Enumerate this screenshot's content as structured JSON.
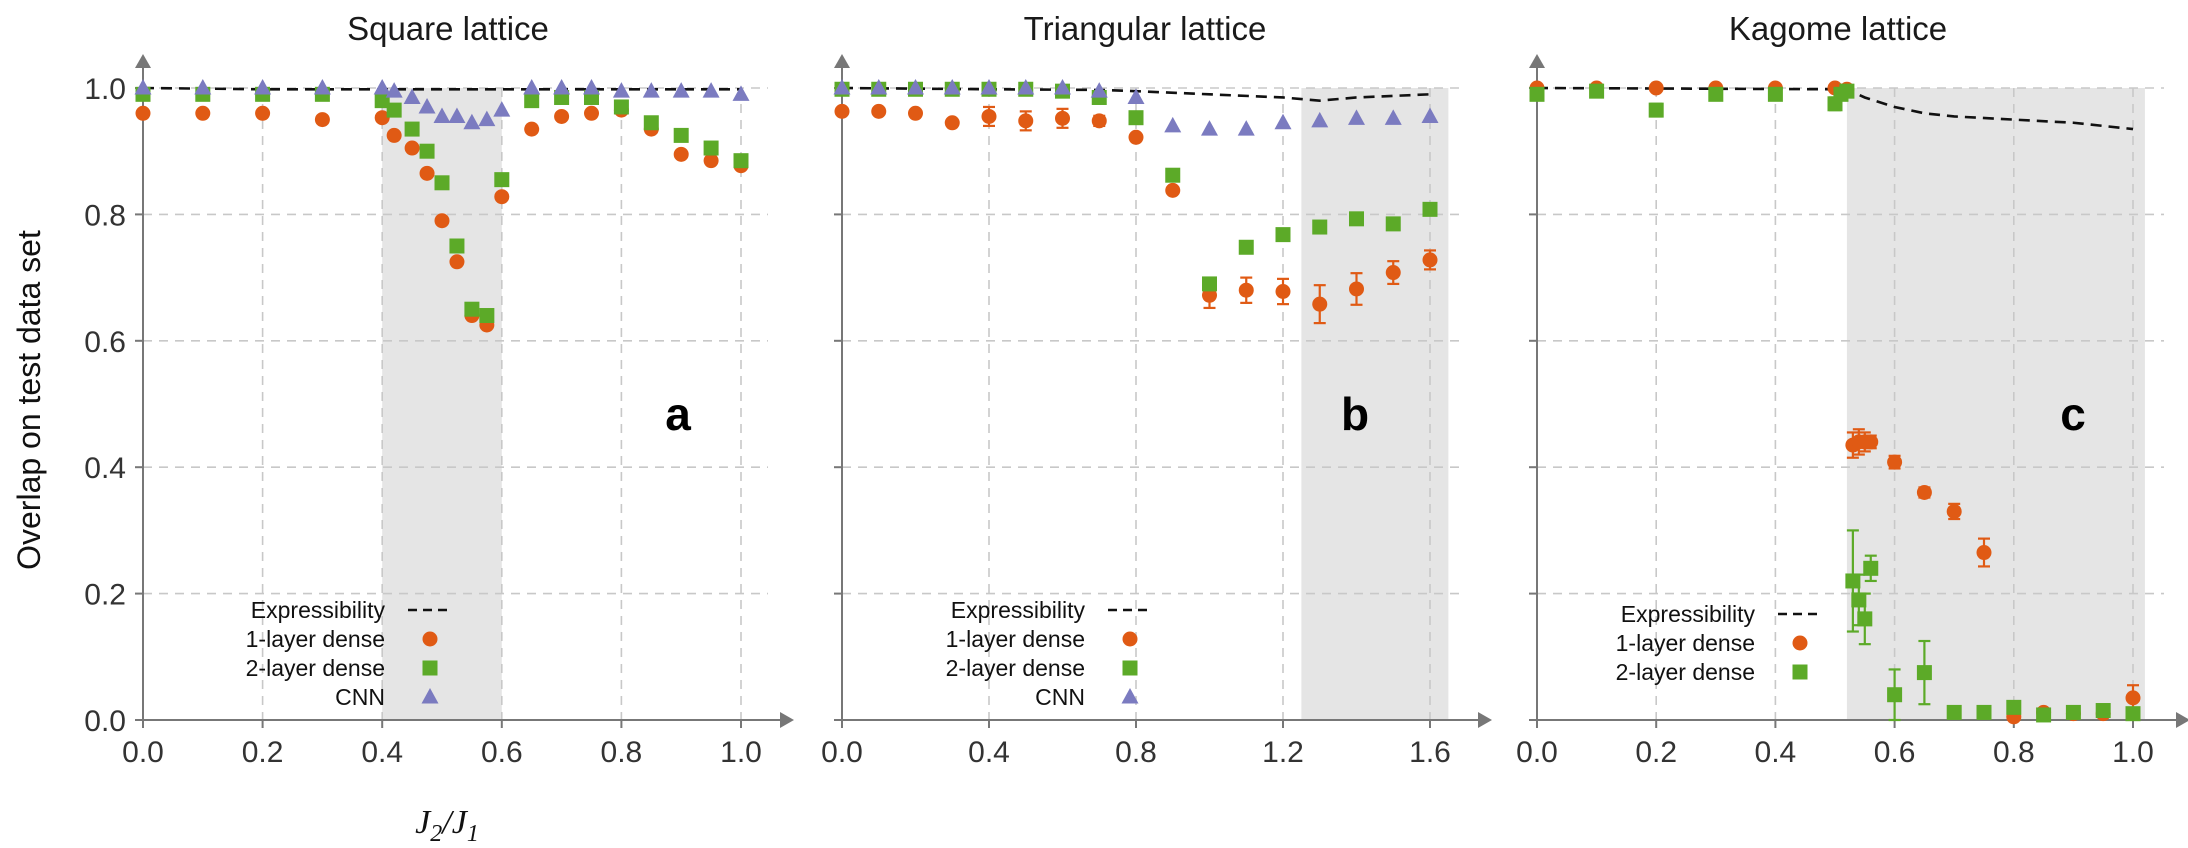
{
  "figure": {
    "y_axis_label": "Overlap on test data set",
    "x_axis_label_main": "J",
    "x_axis_label_sub1": "2",
    "x_axis_label_sep": "/",
    "x_axis_label_sub2": "1"
  },
  "colors": {
    "expressibility": "#111111",
    "one_layer": "#E05A14",
    "two_layer": "#5CAA28",
    "cnn": "#7B7BC0",
    "shade": "#E5E5E5",
    "grid": "#C8C8C8",
    "axis": "#777777"
  },
  "chart_data": [
    {
      "type": "scatter",
      "title": "Square lattice",
      "panel_letter": "a",
      "xlim": [
        0,
        1.0
      ],
      "ylim": [
        0,
        1.0
      ],
      "x_ticks": [
        0.0,
        0.2,
        0.4,
        0.6,
        0.8,
        1.0
      ],
      "x_tick_labels": [
        "0.0",
        "0.2",
        "0.4",
        "0.6",
        "0.8",
        "1.0"
      ],
      "y_ticks": [
        0.0,
        0.2,
        0.4,
        0.6,
        0.8,
        1.0
      ],
      "y_tick_labels": [
        "0.0",
        "0.2",
        "0.4",
        "0.6",
        "0.8",
        "1.0"
      ],
      "grid": true,
      "shaded_region": [
        0.4,
        0.6
      ],
      "legend_location": "bottom-left",
      "legend": [
        "Expressibility",
        "1-layer dense",
        "2-layer dense",
        "CNN"
      ],
      "expressibility": {
        "x": [
          0.0,
          0.2,
          0.4,
          0.6,
          0.8,
          1.0
        ],
        "y": [
          1.0,
          0.998,
          0.998,
          0.998,
          0.998,
          0.998
        ]
      },
      "series": [
        {
          "name": "1-layer dense",
          "marker": "circle",
          "color_key": "one_layer",
          "x": [
            0.0,
            0.1,
            0.2,
            0.3,
            0.4,
            0.42,
            0.45,
            0.475,
            0.5,
            0.525,
            0.55,
            0.575,
            0.6,
            0.65,
            0.7,
            0.75,
            0.8,
            0.85,
            0.9,
            0.95,
            1.0
          ],
          "y": [
            0.96,
            0.96,
            0.96,
            0.95,
            0.953,
            0.925,
            0.905,
            0.865,
            0.79,
            0.725,
            0.64,
            0.625,
            0.828,
            0.935,
            0.955,
            0.96,
            0.965,
            0.935,
            0.895,
            0.885,
            0.877
          ]
        },
        {
          "name": "2-layer dense",
          "marker": "square",
          "color_key": "two_layer",
          "x": [
            0.0,
            0.1,
            0.2,
            0.3,
            0.4,
            0.42,
            0.45,
            0.475,
            0.5,
            0.525,
            0.55,
            0.575,
            0.6,
            0.65,
            0.7,
            0.75,
            0.8,
            0.85,
            0.9,
            0.95,
            1.0
          ],
          "y": [
            0.99,
            0.99,
            0.99,
            0.99,
            0.98,
            0.965,
            0.935,
            0.9,
            0.85,
            0.75,
            0.65,
            0.64,
            0.855,
            0.98,
            0.985,
            0.985,
            0.97,
            0.945,
            0.925,
            0.905,
            0.885
          ]
        },
        {
          "name": "CNN",
          "marker": "triangle",
          "color_key": "cnn",
          "x": [
            0.0,
            0.1,
            0.2,
            0.3,
            0.4,
            0.42,
            0.45,
            0.475,
            0.5,
            0.525,
            0.55,
            0.575,
            0.6,
            0.65,
            0.7,
            0.75,
            0.8,
            0.85,
            0.9,
            0.95,
            1.0
          ],
          "y": [
            1.0,
            1.0,
            1.0,
            1.0,
            1.0,
            0.995,
            0.985,
            0.97,
            0.955,
            0.955,
            0.945,
            0.95,
            0.965,
            1.0,
            1.0,
            1.0,
            0.995,
            0.995,
            0.995,
            0.995,
            0.99
          ]
        }
      ]
    },
    {
      "type": "scatter",
      "title": "Triangular lattice",
      "panel_letter": "b",
      "xlim": [
        0,
        1.6
      ],
      "ylim": [
        0,
        1.0
      ],
      "x_ticks": [
        0.0,
        0.4,
        0.8,
        1.2,
        1.6
      ],
      "x_tick_labels": [
        "0.0",
        "0.4",
        "0.8",
        "1.2",
        "1.6"
      ],
      "y_ticks": [
        0.0,
        0.2,
        0.4,
        0.6,
        0.8,
        1.0
      ],
      "grid": true,
      "shaded_region": [
        1.25,
        1.65
      ],
      "legend_location": "bottom-left",
      "legend": [
        "Expressibility",
        "1-layer dense",
        "2-layer dense",
        "CNN"
      ],
      "expressibility": {
        "x": [
          0.0,
          0.4,
          0.7,
          0.8,
          1.0,
          1.2,
          1.3,
          1.4,
          1.6
        ],
        "y": [
          1.0,
          0.998,
          0.997,
          0.995,
          0.99,
          0.985,
          0.98,
          0.985,
          0.99
        ]
      },
      "series": [
        {
          "name": "1-layer dense",
          "marker": "circle",
          "color_key": "one_layer",
          "x": [
            0.0,
            0.1,
            0.2,
            0.3,
            0.4,
            0.5,
            0.6,
            0.7,
            0.8,
            0.9,
            1.0,
            1.1,
            1.2,
            1.3,
            1.4,
            1.5,
            1.6
          ],
          "y": [
            0.963,
            0.963,
            0.96,
            0.945,
            0.955,
            0.948,
            0.952,
            0.948,
            0.922,
            0.838,
            0.672,
            0.68,
            0.678,
            0.658,
            0.682,
            0.708,
            0.728
          ],
          "err": [
            0,
            0,
            0,
            0,
            0.015,
            0.015,
            0.015,
            0.008,
            0,
            0,
            0.02,
            0.02,
            0.02,
            0.03,
            0.025,
            0.018,
            0.015
          ]
        },
        {
          "name": "2-layer dense",
          "marker": "square",
          "color_key": "two_layer",
          "x": [
            0.0,
            0.1,
            0.2,
            0.3,
            0.4,
            0.5,
            0.6,
            0.7,
            0.8,
            0.9,
            1.0,
            1.1,
            1.2,
            1.3,
            1.4,
            1.5,
            1.6
          ],
          "y": [
            0.998,
            0.998,
            0.998,
            0.998,
            0.998,
            0.998,
            0.995,
            0.985,
            0.953,
            0.862,
            0.69,
            0.748,
            0.768,
            0.78,
            0.793,
            0.785,
            0.808
          ]
        },
        {
          "name": "CNN",
          "marker": "triangle",
          "color_key": "cnn",
          "x": [
            0.0,
            0.1,
            0.2,
            0.3,
            0.4,
            0.5,
            0.6,
            0.7,
            0.8,
            0.9,
            1.0,
            1.1,
            1.2,
            1.3,
            1.4,
            1.5,
            1.6
          ],
          "y": [
            1.0,
            1.0,
            1.0,
            1.0,
            1.0,
            1.0,
            1.0,
            0.995,
            0.985,
            0.94,
            0.935,
            0.935,
            0.945,
            0.948,
            0.952,
            0.952,
            0.955
          ]
        }
      ]
    },
    {
      "type": "scatter",
      "title": "Kagome lattice",
      "panel_letter": "c",
      "xlim": [
        0,
        1.0
      ],
      "ylim": [
        0,
        1.0
      ],
      "x_ticks": [
        0.0,
        0.2,
        0.4,
        0.6,
        0.8,
        1.0
      ],
      "x_tick_labels": [
        "0.0",
        "0.2",
        "0.4",
        "0.6",
        "0.8",
        "1.0"
      ],
      "y_ticks": [
        0.0,
        0.2,
        0.4,
        0.6,
        0.8,
        1.0
      ],
      "grid": true,
      "shaded_region": [
        0.52,
        1.02
      ],
      "legend_location": "bottom-left",
      "legend": [
        "Expressibility",
        "1-layer dense",
        "2-layer dense"
      ],
      "expressibility": {
        "x": [
          0.0,
          0.5,
          0.52,
          0.55,
          0.6,
          0.65,
          0.7,
          0.8,
          0.9,
          1.0
        ],
        "y": [
          1.0,
          0.998,
          0.998,
          0.985,
          0.97,
          0.96,
          0.955,
          0.95,
          0.945,
          0.935
        ]
      },
      "series": [
        {
          "name": "1-layer dense",
          "marker": "circle",
          "color_key": "one_layer",
          "x": [
            0.0,
            0.1,
            0.2,
            0.3,
            0.4,
            0.5,
            0.51,
            0.52,
            0.53,
            0.54,
            0.55,
            0.56,
            0.6,
            0.65,
            0.7,
            0.75,
            0.8,
            0.85,
            0.9,
            0.95,
            1.0
          ],
          "y": [
            1.0,
            1.0,
            1.0,
            1.0,
            1.0,
            1.0,
            0.995,
            0.998,
            0.435,
            0.44,
            0.44,
            0.44,
            0.408,
            0.36,
            0.33,
            0.265,
            0.005,
            0.012,
            0.01,
            0.01,
            0.035
          ],
          "err": [
            0,
            0,
            0,
            0,
            0,
            0,
            0,
            0,
            0.02,
            0.02,
            0.015,
            0.01,
            0.01,
            0.008,
            0.012,
            0.022,
            0,
            0,
            0,
            0,
            0.02
          ]
        },
        {
          "name": "2-layer dense",
          "marker": "square",
          "color_key": "two_layer",
          "x": [
            0.0,
            0.1,
            0.2,
            0.3,
            0.4,
            0.5,
            0.51,
            0.52,
            0.53,
            0.54,
            0.55,
            0.56,
            0.6,
            0.65,
            0.7,
            0.75,
            0.8,
            0.85,
            0.9,
            0.95,
            1.0
          ],
          "y": [
            0.99,
            0.995,
            0.965,
            0.99,
            0.99,
            0.975,
            0.99,
            0.995,
            0.22,
            0.19,
            0.16,
            0.24,
            0.04,
            0.075,
            0.012,
            0.012,
            0.02,
            0.008,
            0.012,
            0.015,
            0.01
          ],
          "err": [
            0,
            0,
            0.01,
            0,
            0,
            0.01,
            0,
            0,
            0.08,
            0.04,
            0.04,
            0.02,
            0.04,
            0.05,
            0,
            0,
            0,
            0,
            0,
            0,
            0
          ]
        }
      ]
    }
  ]
}
